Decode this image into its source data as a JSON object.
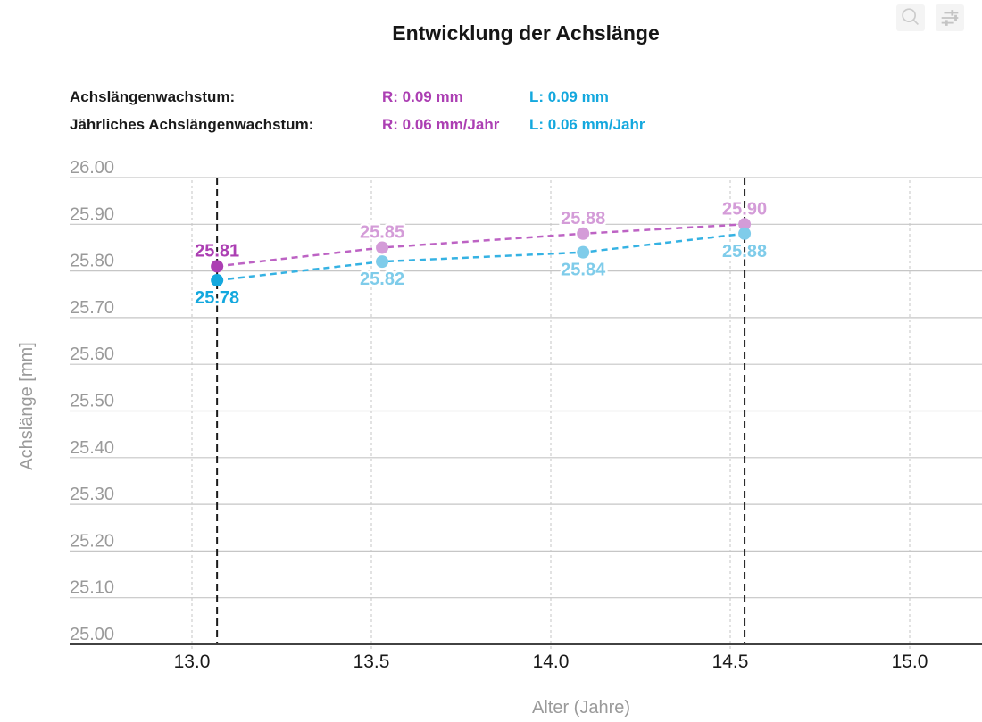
{
  "header": {
    "title": "Entwicklung der Achslänge"
  },
  "toolbar": {
    "zoom_icon": "magnifier-icon",
    "settings_icon": "sliders-icon"
  },
  "stats": {
    "rows": [
      {
        "label": "Achslängenwachstum:",
        "r_value": "R: 0.09 mm",
        "l_value": "L: 0.09 mm"
      },
      {
        "label": "Jährliches Achslängenwachstum:",
        "r_value": "R: 0.06 mm/Jahr",
        "l_value": "L: 0.06 mm/Jahr"
      }
    ]
  },
  "colors": {
    "right_eye": "#AC3FB3",
    "right_eye_light": "#D49CD8",
    "right_eye_line": "#BD63C4",
    "left_eye": "#14A8DE",
    "left_eye_light": "#7FCCEA",
    "left_eye_line": "#35B2E3",
    "grid": "#C6C6C6",
    "axis": "#424242",
    "tick_text": "#9A9A9A",
    "x_tick_text": "#1A1A1A",
    "marker": "#1A1A1A"
  },
  "chart_data": {
    "type": "line",
    "title": "Entwicklung der Achslänge",
    "xlabel": "Alter (Jahre)",
    "ylabel": "Achslänge [mm]",
    "xlim": [
      12.66,
      15.2
    ],
    "ylim": [
      25.0,
      26.0
    ],
    "x_ticks": [
      13.0,
      13.5,
      14.0,
      14.5,
      15.0
    ],
    "y_ticks": [
      26.0,
      25.9,
      25.8,
      25.7,
      25.6,
      25.5,
      25.4,
      25.3,
      25.2,
      25.1,
      25.0
    ],
    "grid": true,
    "legend": "none",
    "line_style": "dashed",
    "x": [
      13.07,
      13.53,
      14.09,
      14.54
    ],
    "series": [
      {
        "name": "R",
        "eye": "right",
        "values": [
          25.81,
          25.85,
          25.88,
          25.9
        ],
        "point_labels": [
          "25.81",
          "25.85",
          "25.88",
          "25.90"
        ],
        "label_position": "above"
      },
      {
        "name": "L",
        "eye": "left",
        "values": [
          25.78,
          25.82,
          25.84,
          25.88
        ],
        "point_labels": [
          "25.78",
          "25.82",
          "25.84",
          "25.88"
        ],
        "label_position": "below"
      }
    ],
    "vertical_markers": [
      13.07,
      14.54
    ]
  }
}
